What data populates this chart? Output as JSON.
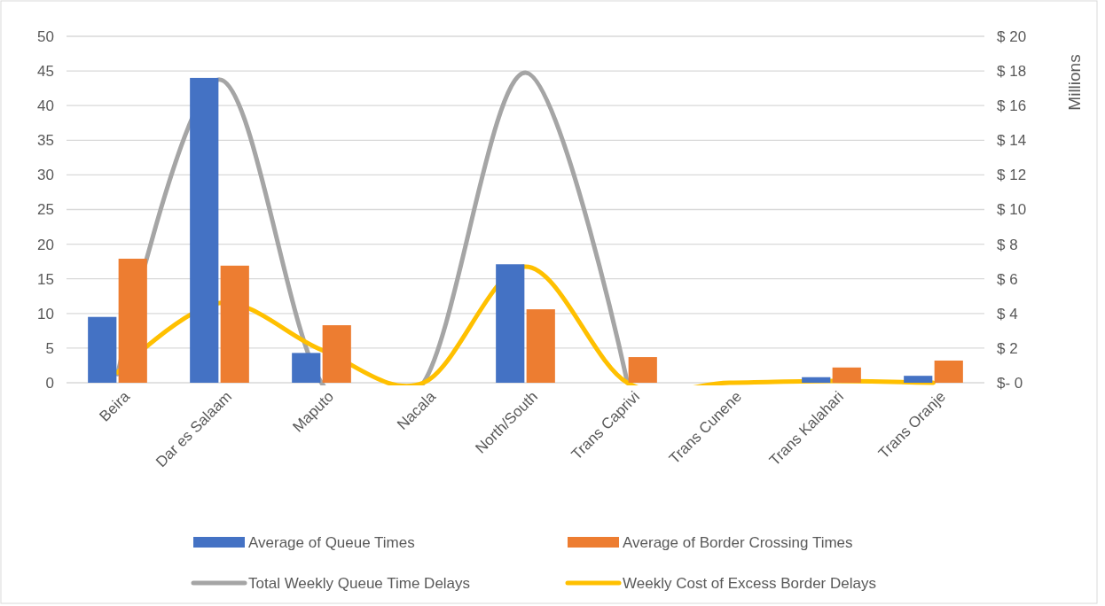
{
  "chart_data": {
    "type": "bar",
    "categories": [
      "Beira",
      "Dar es Salaam",
      "Maputo",
      "Nacala",
      "North/South",
      "Trans Caprivi",
      "Trans Cunene",
      "Trans Kalahari",
      "Trans Oranje"
    ],
    "series": [
      {
        "name": "Average of Queue Times",
        "color": "#4472c4",
        "values": [
          9.5,
          44.0,
          4.3,
          0,
          17.1,
          0,
          0,
          0.8,
          1.0
        ]
      },
      {
        "name": "Average of Border Crossing Times",
        "color": "#ed7d31",
        "values": [
          17.9,
          16.9,
          8.3,
          0,
          10.6,
          3.7,
          0,
          2.2,
          3.2
        ]
      },
      {
        "name": "Total Weekly Queue Time Delays",
        "type": "line",
        "axis": "y2",
        "color": "#a5a5a5",
        "values": [
          0.5,
          17.5,
          0,
          0,
          17.9,
          0,
          null,
          null,
          null
        ]
      },
      {
        "name": "Weekly Cost of Excess Border Delays",
        "type": "line",
        "axis": "y2",
        "color": "#ffc000",
        "values": [
          0.6,
          4.6,
          1.9,
          0,
          6.7,
          0,
          0,
          0.1,
          0
        ]
      }
    ],
    "ylim": [
      0,
      50
    ],
    "yticks": [
      0,
      5,
      10,
      15,
      20,
      25,
      30,
      35,
      40,
      45,
      50
    ],
    "y2lim": [
      0,
      20
    ],
    "y2ticks": [
      {
        "value": 0,
        "label": "$- 0"
      },
      {
        "value": 2,
        "label": "$ 2"
      },
      {
        "value": 4,
        "label": "$ 4"
      },
      {
        "value": 6,
        "label": "$ 6"
      },
      {
        "value": 8,
        "label": "$ 8"
      },
      {
        "value": 10,
        "label": "$ 10"
      },
      {
        "value": 12,
        "label": "$ 12"
      },
      {
        "value": 14,
        "label": "$ 14"
      },
      {
        "value": 16,
        "label": "$ 16"
      },
      {
        "value": 18,
        "label": "$ 18"
      },
      {
        "value": 20,
        "label": "$ 20"
      }
    ],
    "y2label": "Millions",
    "grid": "y",
    "legend": "bottom",
    "line_style": "solid",
    "marker": "none"
  }
}
